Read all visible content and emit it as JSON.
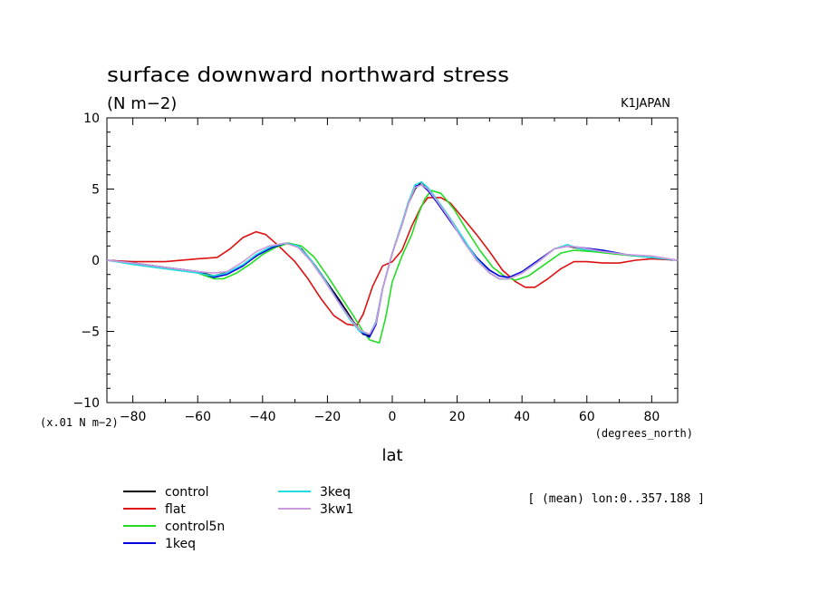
{
  "chart_data": {
    "type": "line",
    "title": "surface downward northward stress",
    "subtitle": "(N m−2)",
    "model_label": "K1JAPAN",
    "y_scale_note": "(x.01 N m−2)",
    "xlabel": "lat",
    "x_units": "(degrees_north)",
    "note": "[ (mean) lon:0..357.188 ]",
    "xlim": [
      -88,
      88
    ],
    "ylim": [
      -10,
      10
    ],
    "x_ticks": [
      -80,
      -60,
      -40,
      -20,
      0,
      20,
      40,
      60,
      80
    ],
    "x_tick_labels": [
      "−80",
      "−60",
      "−40",
      "−20",
      "0",
      "20",
      "40",
      "60",
      "80"
    ],
    "y_ticks": [
      -10,
      -5,
      0,
      5,
      10
    ],
    "y_tick_labels": [
      "−10",
      "−5",
      "0",
      "5",
      "10"
    ],
    "grid": false,
    "legend_position": "bottom-left",
    "series": [
      {
        "name": "control",
        "color": "#000000",
        "points": [
          [
            -88,
            0
          ],
          [
            -80,
            -0.2
          ],
          [
            -70,
            -0.5
          ],
          [
            -60,
            -0.8
          ],
          [
            -55,
            -1.1
          ],
          [
            -50,
            -0.8
          ],
          [
            -45,
            -0.2
          ],
          [
            -40,
            0.6
          ],
          [
            -35,
            1.1
          ],
          [
            -32,
            1.2
          ],
          [
            -28,
            0.8
          ],
          [
            -24,
            -0.3
          ],
          [
            -20,
            -1.6
          ],
          [
            -16,
            -2.9
          ],
          [
            -12,
            -4.3
          ],
          [
            -9,
            -5.2
          ],
          [
            -7,
            -5.3
          ],
          [
            -5,
            -4.3
          ],
          [
            -3,
            -2.0
          ],
          [
            0,
            0.5
          ],
          [
            3,
            2.5
          ],
          [
            5,
            4.0
          ],
          [
            7,
            5.0
          ],
          [
            9,
            5.5
          ],
          [
            11,
            5.0
          ],
          [
            14,
            4.1
          ],
          [
            18,
            2.8
          ],
          [
            22,
            1.4
          ],
          [
            26,
            0.1
          ],
          [
            30,
            -0.9
          ],
          [
            33,
            -1.3
          ],
          [
            36,
            -1.3
          ],
          [
            40,
            -0.9
          ],
          [
            45,
            -0.1
          ],
          [
            50,
            0.8
          ],
          [
            54,
            1.0
          ],
          [
            58,
            0.8
          ],
          [
            65,
            0.6
          ],
          [
            72,
            0.4
          ],
          [
            80,
            0.2
          ],
          [
            88,
            0
          ]
        ]
      },
      {
        "name": "flat",
        "color": "#dd1111",
        "points": [
          [
            -88,
            0
          ],
          [
            -80,
            -0.1
          ],
          [
            -70,
            -0.1
          ],
          [
            -60,
            0.1
          ],
          [
            -54,
            0.2
          ],
          [
            -50,
            0.8
          ],
          [
            -46,
            1.6
          ],
          [
            -42,
            2.0
          ],
          [
            -39,
            1.8
          ],
          [
            -35,
            1.0
          ],
          [
            -30,
            -0.1
          ],
          [
            -26,
            -1.3
          ],
          [
            -22,
            -2.7
          ],
          [
            -18,
            -3.9
          ],
          [
            -14,
            -4.5
          ],
          [
            -11,
            -4.6
          ],
          [
            -9,
            -3.8
          ],
          [
            -6,
            -1.8
          ],
          [
            -3,
            -0.4
          ],
          [
            0,
            -0.1
          ],
          [
            3,
            0.7
          ],
          [
            6,
            2.4
          ],
          [
            9,
            3.8
          ],
          [
            11,
            4.4
          ],
          [
            15,
            4.4
          ],
          [
            18,
            4.0
          ],
          [
            22,
            2.9
          ],
          [
            26,
            1.8
          ],
          [
            30,
            0.6
          ],
          [
            34,
            -0.7
          ],
          [
            38,
            -1.5
          ],
          [
            41,
            -1.9
          ],
          [
            44,
            -1.9
          ],
          [
            48,
            -1.3
          ],
          [
            52,
            -0.6
          ],
          [
            56,
            -0.1
          ],
          [
            60,
            -0.1
          ],
          [
            65,
            -0.2
          ],
          [
            70,
            -0.2
          ],
          [
            75,
            0
          ],
          [
            80,
            0.1
          ],
          [
            88,
            0
          ]
        ]
      },
      {
        "name": "control5n",
        "color": "#22dd22",
        "points": [
          [
            -88,
            0
          ],
          [
            -80,
            -0.2
          ],
          [
            -70,
            -0.5
          ],
          [
            -60,
            -0.9
          ],
          [
            -55,
            -1.3
          ],
          [
            -52,
            -1.3
          ],
          [
            -48,
            -0.9
          ],
          [
            -44,
            -0.3
          ],
          [
            -40,
            0.4
          ],
          [
            -36,
            0.9
          ],
          [
            -32,
            1.2
          ],
          [
            -28,
            1.0
          ],
          [
            -24,
            0.2
          ],
          [
            -20,
            -1.1
          ],
          [
            -16,
            -2.5
          ],
          [
            -12,
            -3.9
          ],
          [
            -9,
            -5.0
          ],
          [
            -7,
            -5.6
          ],
          [
            -4,
            -5.8
          ],
          [
            -2,
            -4.0
          ],
          [
            0,
            -1.5
          ],
          [
            3,
            0.3
          ],
          [
            6,
            1.8
          ],
          [
            8,
            3.2
          ],
          [
            10,
            4.3
          ],
          [
            12,
            4.9
          ],
          [
            15,
            4.7
          ],
          [
            19,
            3.6
          ],
          [
            23,
            2.1
          ],
          [
            27,
            0.7
          ],
          [
            31,
            -0.5
          ],
          [
            35,
            -1.2
          ],
          [
            38,
            -1.4
          ],
          [
            42,
            -1.1
          ],
          [
            47,
            -0.3
          ],
          [
            52,
            0.5
          ],
          [
            56,
            0.7
          ],
          [
            62,
            0.6
          ],
          [
            70,
            0.4
          ],
          [
            80,
            0.2
          ],
          [
            88,
            0
          ]
        ]
      },
      {
        "name": "1keq",
        "color": "#0000dd",
        "points": [
          [
            -88,
            0
          ],
          [
            -80,
            -0.2
          ],
          [
            -70,
            -0.5
          ],
          [
            -60,
            -0.8
          ],
          [
            -55,
            -1.2
          ],
          [
            -51,
            -1.0
          ],
          [
            -46,
            -0.4
          ],
          [
            -42,
            0.3
          ],
          [
            -37,
            0.9
          ],
          [
            -33,
            1.2
          ],
          [
            -29,
            1.0
          ],
          [
            -25,
            0
          ],
          [
            -21,
            -1.3
          ],
          [
            -17,
            -2.7
          ],
          [
            -13,
            -4.1
          ],
          [
            -10,
            -5.0
          ],
          [
            -7,
            -5.4
          ],
          [
            -5,
            -4.5
          ],
          [
            -3,
            -2.0
          ],
          [
            0,
            0.5
          ],
          [
            3,
            2.6
          ],
          [
            5,
            4.1
          ],
          [
            7,
            5.2
          ],
          [
            9,
            5.3
          ],
          [
            11,
            4.9
          ],
          [
            14,
            4.0
          ],
          [
            18,
            2.7
          ],
          [
            22,
            1.4
          ],
          [
            26,
            0.2
          ],
          [
            30,
            -0.7
          ],
          [
            33,
            -1.1
          ],
          [
            36,
            -1.2
          ],
          [
            40,
            -0.8
          ],
          [
            45,
            0
          ],
          [
            50,
            0.8
          ],
          [
            54,
            1.0
          ],
          [
            58,
            0.9
          ],
          [
            65,
            0.7
          ],
          [
            72,
            0.4
          ],
          [
            80,
            0.2
          ],
          [
            88,
            0
          ]
        ]
      },
      {
        "name": "3keq",
        "color": "#22dddd",
        "points": [
          [
            -88,
            0
          ],
          [
            -80,
            -0.3
          ],
          [
            -70,
            -0.6
          ],
          [
            -60,
            -0.9
          ],
          [
            -55,
            -1.1
          ],
          [
            -51,
            -0.9
          ],
          [
            -46,
            -0.3
          ],
          [
            -42,
            0.4
          ],
          [
            -37,
            1.0
          ],
          [
            -33,
            1.2
          ],
          [
            -29,
            1.0
          ],
          [
            -25,
            0
          ],
          [
            -21,
            -1.3
          ],
          [
            -17,
            -2.8
          ],
          [
            -13,
            -4.2
          ],
          [
            -10,
            -5.0
          ],
          [
            -7,
            -5.2
          ],
          [
            -5,
            -4.3
          ],
          [
            -3,
            -2.0
          ],
          [
            0,
            0.5
          ],
          [
            3,
            2.6
          ],
          [
            5,
            4.1
          ],
          [
            7,
            5.3
          ],
          [
            9,
            5.5
          ],
          [
            11,
            5.1
          ],
          [
            14,
            4.2
          ],
          [
            18,
            2.9
          ],
          [
            22,
            1.5
          ],
          [
            26,
            0.1
          ],
          [
            30,
            -0.9
          ],
          [
            33,
            -1.3
          ],
          [
            36,
            -1.3
          ],
          [
            40,
            -0.9
          ],
          [
            45,
            -0.1
          ],
          [
            50,
            0.8
          ],
          [
            54,
            1.1
          ],
          [
            58,
            0.8
          ],
          [
            65,
            0.6
          ],
          [
            72,
            0.4
          ],
          [
            80,
            0.2
          ],
          [
            88,
            0
          ]
        ]
      },
      {
        "name": "3kw1",
        "color": "#cc99dd",
        "points": [
          [
            -88,
            0
          ],
          [
            -80,
            -0.2
          ],
          [
            -70,
            -0.5
          ],
          [
            -60,
            -0.8
          ],
          [
            -55,
            -0.9
          ],
          [
            -51,
            -0.8
          ],
          [
            -46,
            -0.1
          ],
          [
            -42,
            0.6
          ],
          [
            -38,
            1.0
          ],
          [
            -33,
            1.2
          ],
          [
            -29,
            0.9
          ],
          [
            -25,
            -0.1
          ],
          [
            -21,
            -1.4
          ],
          [
            -17,
            -2.8
          ],
          [
            -13,
            -4.1
          ],
          [
            -10,
            -4.9
          ],
          [
            -7,
            -5.2
          ],
          [
            -5,
            -4.4
          ],
          [
            -3,
            -2.0
          ],
          [
            0,
            0.5
          ],
          [
            3,
            2.5
          ],
          [
            5,
            4.0
          ],
          [
            7,
            5.1
          ],
          [
            9,
            5.3
          ],
          [
            11,
            5.0
          ],
          [
            14,
            4.1
          ],
          [
            18,
            2.8
          ],
          [
            22,
            1.3
          ],
          [
            26,
            0
          ],
          [
            30,
            -0.9
          ],
          [
            33,
            -1.3
          ],
          [
            36,
            -1.3
          ],
          [
            40,
            -0.9
          ],
          [
            45,
            -0.1
          ],
          [
            50,
            0.8
          ],
          [
            54,
            1.0
          ],
          [
            58,
            0.9
          ],
          [
            65,
            0.6
          ],
          [
            72,
            0.4
          ],
          [
            80,
            0.3
          ],
          [
            88,
            0
          ]
        ]
      }
    ]
  }
}
